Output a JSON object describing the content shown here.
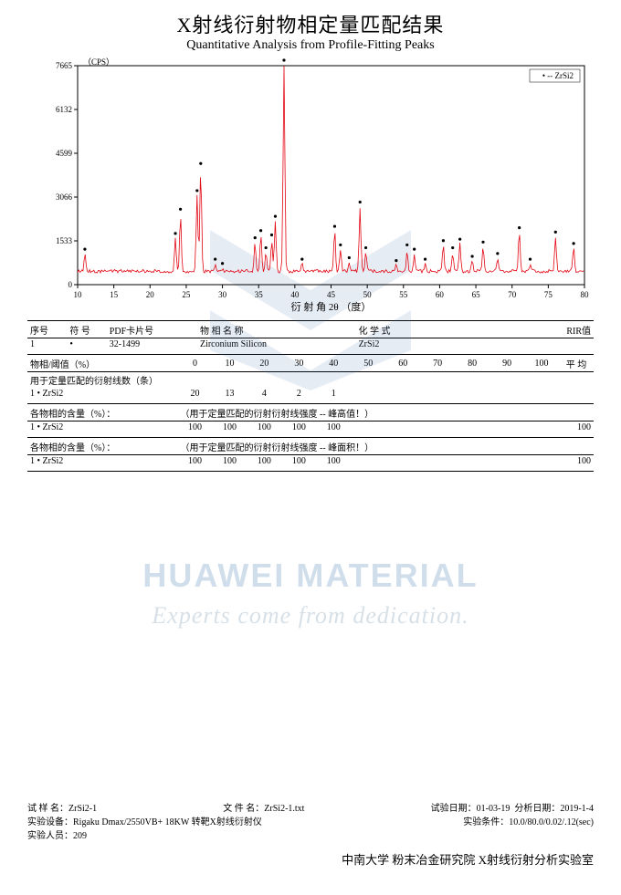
{
  "title_cn": "X射线衍射物相定量匹配结果",
  "title_en": "Quantitative Analysis from Profile-Fitting Peaks",
  "chart": {
    "type": "xrd-line",
    "xlabel": "衍 射 角 2θ （度）",
    "ylabel_unit": "（CPS）",
    "xlim": [
      10,
      80
    ],
    "xticks": [
      10,
      15,
      20,
      25,
      30,
      35,
      40,
      45,
      50,
      55,
      60,
      65,
      70,
      75,
      80
    ],
    "ylim": [
      0,
      7665
    ],
    "yticks": [
      0,
      1533,
      3066,
      4599,
      6132,
      7665
    ],
    "line_color": "#e30613",
    "marker_color": "#000000",
    "background_color": "#ffffff",
    "axis_color": "#000000",
    "legend_label": "-- ZrSi2",
    "legend_marker": "•",
    "baseline": 450,
    "peaks_2theta_height": [
      [
        11.0,
        1050
      ],
      [
        23.5,
        1600
      ],
      [
        24.2,
        2450
      ],
      [
        26.5,
        3100
      ],
      [
        27.0,
        4050
      ],
      [
        29.0,
        700
      ],
      [
        30.0,
        550
      ],
      [
        34.5,
        1450
      ],
      [
        35.3,
        1700
      ],
      [
        36.0,
        1100
      ],
      [
        36.8,
        1550
      ],
      [
        37.3,
        2200
      ],
      [
        38.5,
        7665
      ],
      [
        41.0,
        700
      ],
      [
        45.5,
        1850
      ],
      [
        46.3,
        1200
      ],
      [
        47.5,
        750
      ],
      [
        49.0,
        2700
      ],
      [
        49.8,
        1100
      ],
      [
        54.0,
        650
      ],
      [
        55.5,
        1200
      ],
      [
        56.5,
        1050
      ],
      [
        58.0,
        700
      ],
      [
        60.5,
        1350
      ],
      [
        61.8,
        1100
      ],
      [
        62.8,
        1400
      ],
      [
        64.5,
        800
      ],
      [
        66.0,
        1300
      ],
      [
        68.0,
        900
      ],
      [
        71.0,
        1800
      ],
      [
        72.5,
        700
      ],
      [
        76.0,
        1650
      ],
      [
        78.5,
        1250
      ]
    ]
  },
  "phase_table": {
    "headers": [
      "序号",
      "符 号",
      "PDF卡片号",
      "物 相 名 称",
      "化 学 式",
      "RIR值"
    ],
    "rows": [
      [
        "1",
        "•",
        "32-1499",
        "Zirconium Silicon",
        "ZrSi2",
        ""
      ]
    ]
  },
  "threshold_table": {
    "label": "物相/阈值（%）",
    "line_count_label": "用于定量匹配的衍射线数（条）",
    "pct_headers": [
      "0",
      "10",
      "20",
      "30",
      "40",
      "50",
      "60",
      "70",
      "80",
      "90",
      "100",
      "平 均"
    ],
    "row1": {
      "name": "1  •  ZrSi2",
      "vals": [
        "20",
        "13",
        "4",
        "2",
        "1",
        "",
        "",
        "",
        "",
        "",
        "",
        ""
      ]
    }
  },
  "content_h": {
    "label": "各物相的含量（%）：",
    "note": "（用于定量匹配的衍射衍射线强度 -- 峰高值！）",
    "row": {
      "name": "1  •  ZrSi2",
      "vals": [
        "100",
        "100",
        "100",
        "100",
        "100",
        "",
        "",
        "",
        "",
        "",
        "",
        "100"
      ]
    }
  },
  "content_a": {
    "label": "各物相的含量（%）：",
    "note": "（用于定量匹配的衍射衍射线强度 -- 峰面积！）",
    "row": {
      "name": "1  •  ZrSi2",
      "vals": [
        "100",
        "100",
        "100",
        "100",
        "100",
        "",
        "",
        "",
        "",
        "",
        "",
        "100"
      ]
    }
  },
  "footer": {
    "sample_label": "试 样 名：",
    "sample": "ZrSi2-1",
    "file_label": "文 件 名：",
    "file": "ZrSi2-1.txt",
    "date_label": "试验日期：",
    "date": "01-03-19",
    "ana_label": "分析日期：",
    "ana_date": "2019-1-4",
    "equip_label": "实验设备：",
    "equip": "Rigaku Dmax/2550VB+ 18KW 转靶X射线衍射仪",
    "cond_label": "实验条件：",
    "cond": "10.0/80.0/0.02/.12(sec)",
    "operator_label": "实验人员：",
    "operator": "209",
    "lab": "中南大学  粉末冶金研究院  X射线衍射分析实验室"
  },
  "watermark": {
    "line1": "HUAWEI MATERIAL",
    "line2": "Experts come from dedication."
  }
}
